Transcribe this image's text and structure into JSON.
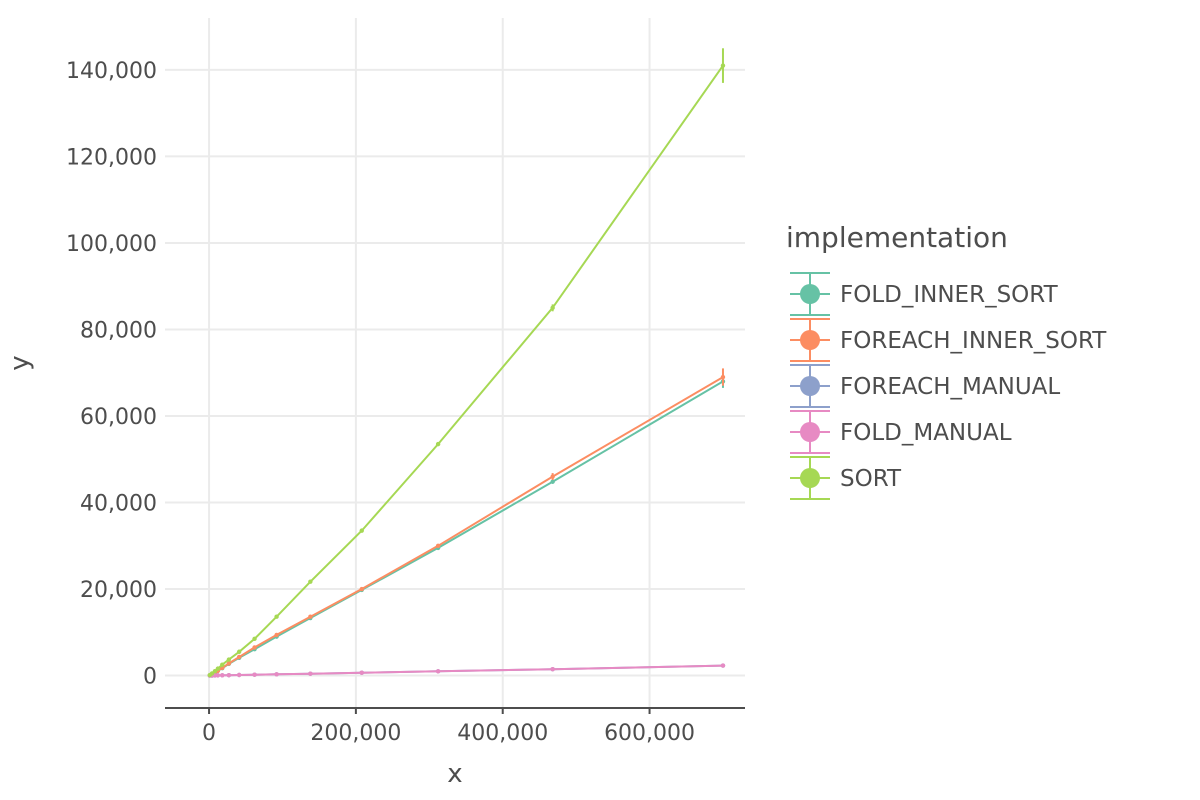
{
  "chart_data": {
    "type": "line",
    "xlabel": "x",
    "ylabel": "y",
    "xlim": [
      -60000,
      730000
    ],
    "ylim": [
      -7500,
      152000
    ],
    "x_ticks": [
      0,
      200000,
      400000,
      600000
    ],
    "x_tick_labels": [
      "0",
      "200,000",
      "400,000",
      "600,000"
    ],
    "y_ticks": [
      0,
      20000,
      40000,
      60000,
      80000,
      100000,
      120000,
      140000
    ],
    "y_tick_labels": [
      "0",
      "20,000",
      "40,000",
      "60,000",
      "80,000",
      "100,000",
      "120,000",
      "140,000"
    ],
    "grid": true,
    "legend": {
      "title": "implementation",
      "position": "right"
    },
    "x": [
      1000,
      4000,
      8000,
      12000,
      18000,
      27000,
      41000,
      62000,
      92000,
      138000,
      208000,
      312000,
      468000,
      700000
    ],
    "series": [
      {
        "name": "FOLD_INNER_SORT",
        "color": "#66c2a5",
        "values": [
          60,
          300,
          700,
          1100,
          1700,
          2700,
          4100,
          6100,
          9000,
          13300,
          19800,
          29500,
          44800,
          68000
        ],
        "errors": [
          0,
          0,
          0,
          0,
          0,
          0,
          0,
          0,
          0,
          0,
          0,
          0,
          0,
          1500
        ]
      },
      {
        "name": "FOREACH_INNER_SORT",
        "color": "#fc8d62",
        "values": [
          60,
          300,
          700,
          1100,
          1800,
          2800,
          4300,
          6500,
          9400,
          13600,
          20000,
          30000,
          46000,
          69000
        ],
        "errors": [
          0,
          0,
          0,
          0,
          0,
          0,
          0,
          0,
          0,
          0,
          0,
          0,
          800,
          2000
        ]
      },
      {
        "name": "FOREACH_MANUAL",
        "color": "#8da0cb",
        "values": [
          0,
          10,
          20,
          40,
          60,
          90,
          130,
          200,
          290,
          430,
          650,
          980,
          1480,
          2300
        ],
        "errors": [
          0,
          0,
          0,
          0,
          0,
          0,
          0,
          0,
          0,
          0,
          0,
          0,
          0,
          0
        ]
      },
      {
        "name": "FOLD_MANUAL",
        "color": "#e78ac3",
        "values": [
          0,
          10,
          20,
          40,
          60,
          90,
          130,
          200,
          290,
          430,
          650,
          980,
          1480,
          2300
        ],
        "errors": [
          0,
          0,
          0,
          0,
          0,
          0,
          0,
          0,
          0,
          0,
          0,
          0,
          0,
          0
        ]
      },
      {
        "name": "SORT",
        "color": "#a6d854",
        "values": [
          100,
          500,
          1000,
          1600,
          2500,
          3700,
          5500,
          8500,
          13600,
          21700,
          33500,
          53500,
          85000,
          141000
        ],
        "errors": [
          0,
          0,
          0,
          0,
          0,
          0,
          0,
          0,
          0,
          0,
          0,
          0,
          800,
          4000
        ]
      }
    ]
  }
}
